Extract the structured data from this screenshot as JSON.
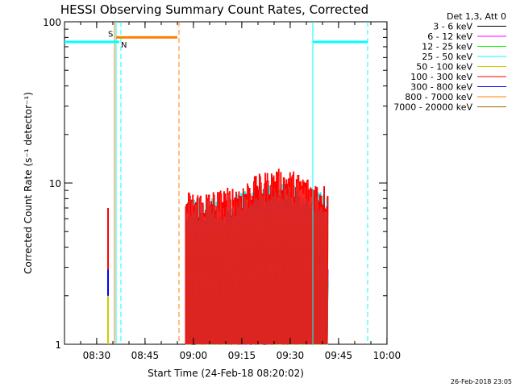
{
  "chart_data": {
    "type": "line",
    "title": "HESSI Observing Summary Count Rates, Corrected",
    "xlabel": "Start Time (24-Feb-18 08:20:02)",
    "ylabel": "Corrected Count Rate (s⁻¹ detector⁻¹)",
    "yscale": "log",
    "xlim_minutes_after_0820_02": [
      0,
      100
    ],
    "ylim": [
      1,
      100
    ],
    "x_ticks": [
      "08:30",
      "08:45",
      "09:00",
      "09:15",
      "09:30",
      "09:45",
      "10:00"
    ],
    "y_ticks": [
      "1",
      "10",
      "100"
    ],
    "legend_title": "Det 1,3, Att 0",
    "legend_position": "right",
    "footer_timestamp": "26-Feb-2018 23:05",
    "series": [
      {
        "name": "3 - 6 keV",
        "color": "#000000",
        "level_range": [
          1,
          1
        ]
      },
      {
        "name": "6 - 12 keV",
        "color": "#ff00ff",
        "level_range": [
          1.2,
          2.5
        ]
      },
      {
        "name": "12 - 25 keV",
        "color": "#00ff00",
        "level_range": [
          1.5,
          3.0
        ]
      },
      {
        "name": "25 - 50 keV",
        "color": "#00ffff",
        "level_range": [
          5.0,
          9.0
        ]
      },
      {
        "name": "50 - 100 keV",
        "color": "#cccc00",
        "level_range": [
          3.5,
          6.0
        ]
      },
      {
        "name": "100 - 300 keV",
        "color": "#ff0000",
        "level_range": [
          5.0,
          11.0
        ]
      },
      {
        "name": "300 - 800 keV",
        "color": "#0000ff",
        "level_range": [
          2.5,
          4.0
        ]
      },
      {
        "name": "800 - 7000 keV",
        "color": "#ff8000",
        "level_range": [
          1.0,
          2.0
        ]
      },
      {
        "name": "7000 - 20000 keV",
        "color": "#996600",
        "level_range": [
          1,
          1
        ]
      }
    ],
    "data_interval_minutes": [
      37.5,
      81.5
    ],
    "spike_minute": 13.5,
    "annotations": [
      {
        "label": "S",
        "color": "#ff8000",
        "start_minute": 16,
        "end_minute": 35,
        "level": 80
      },
      {
        "label": "N",
        "color": "#00ffff",
        "start_minute": 0,
        "end_minute": 17,
        "level": 75
      },
      {
        "label": "",
        "color": "#00ffff",
        "start_minute": 77,
        "end_minute": 94,
        "level": 75
      }
    ],
    "vertical_markers": [
      {
        "minute": 15.5,
        "color": "#ff8000",
        "style": "solid"
      },
      {
        "minute": 16.0,
        "color": "#00ffff",
        "style": "solid"
      },
      {
        "minute": 17.5,
        "color": "#00ffff",
        "style": "dashed"
      },
      {
        "minute": 35.5,
        "color": "#ff8000",
        "style": "dashed"
      },
      {
        "minute": 77.0,
        "color": "#00ffff",
        "style": "solid"
      },
      {
        "minute": 94.0,
        "color": "#00ffff",
        "style": "dashed"
      }
    ]
  }
}
